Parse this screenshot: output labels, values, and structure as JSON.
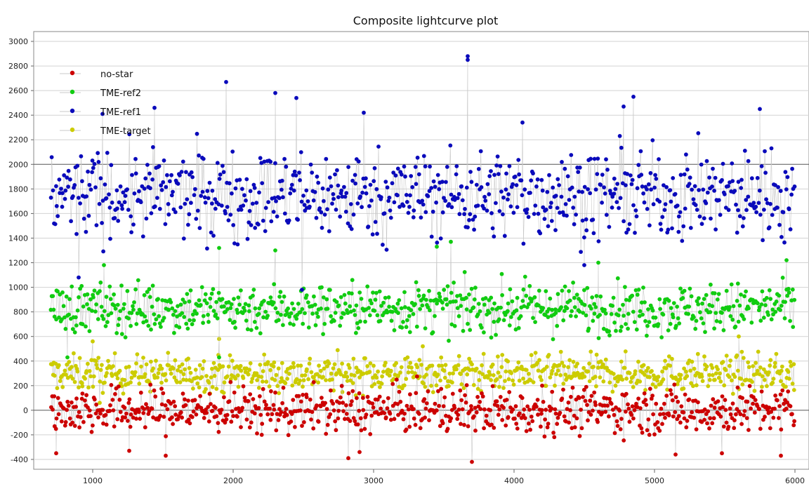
{
  "chart_data": {
    "type": "scatter",
    "title": "Composite lightcurve plot",
    "xlabel": "",
    "ylabel": "",
    "xlim": [
      580,
      6100
    ],
    "ylim": [
      -480,
      3080
    ],
    "x_ticks": [
      1000,
      2000,
      3000,
      4000,
      5000,
      6000
    ],
    "y_ticks": [
      -400,
      -200,
      0,
      200,
      400,
      600,
      800,
      1000,
      1200,
      1400,
      1600,
      1800,
      2000,
      2200,
      2400,
      2600,
      2800,
      3000
    ],
    "x_range": [
      700,
      6000
    ],
    "grid": "horizontal",
    "legend_position": "top-left",
    "connector_color": "#c8c8c8",
    "series": [
      {
        "name": "no-star",
        "color": "#cc0000",
        "level": 0,
        "spread": 110,
        "notable_points": [
          {
            "x": 740,
            "y": -350
          },
          {
            "x": 1520,
            "y": -370
          },
          {
            "x": 1260,
            "y": -330
          },
          {
            "x": 2820,
            "y": -390
          },
          {
            "x": 2900,
            "y": -340
          },
          {
            "x": 3700,
            "y": -420
          },
          {
            "x": 4200,
            "y": 200
          },
          {
            "x": 5150,
            "y": -360
          },
          {
            "x": 5480,
            "y": -350
          },
          {
            "x": 5900,
            "y": -370
          }
        ]
      },
      {
        "name": "TME-ref2",
        "color": "#11cc11",
        "level": 830,
        "spread": 120,
        "notable_points": [
          {
            "x": 1080,
            "y": 1180
          },
          {
            "x": 1900,
            "y": 1320
          },
          {
            "x": 2300,
            "y": 1300
          },
          {
            "x": 3550,
            "y": 1370
          },
          {
            "x": 3450,
            "y": 1330
          },
          {
            "x": 5940,
            "y": 1220
          },
          {
            "x": 4600,
            "y": 1200
          },
          {
            "x": 820,
            "y": 430
          },
          {
            "x": 1900,
            "y": 430
          }
        ]
      },
      {
        "name": "TME-ref1",
        "color": "#0a0abb",
        "level": 1750,
        "spread": 210,
        "notable_points": [
          {
            "x": 3670,
            "y": 2880
          },
          {
            "x": 3670,
            "y": 2850
          },
          {
            "x": 1950,
            "y": 2670
          },
          {
            "x": 2300,
            "y": 2580
          },
          {
            "x": 2450,
            "y": 2540
          },
          {
            "x": 4850,
            "y": 2550
          },
          {
            "x": 4780,
            "y": 2470
          },
          {
            "x": 1440,
            "y": 2460
          },
          {
            "x": 5750,
            "y": 2450
          },
          {
            "x": 1070,
            "y": 2410
          },
          {
            "x": 2930,
            "y": 2420
          },
          {
            "x": 4060,
            "y": 2340
          },
          {
            "x": 900,
            "y": 1080
          },
          {
            "x": 2490,
            "y": 980
          },
          {
            "x": 4500,
            "y": 1180
          }
        ]
      },
      {
        "name": "TME-target",
        "color": "#cccc00",
        "level": 300,
        "spread": 85,
        "notable_points": [
          {
            "x": 1000,
            "y": 560
          },
          {
            "x": 1900,
            "y": 580
          },
          {
            "x": 3350,
            "y": 520
          },
          {
            "x": 5600,
            "y": 600
          },
          {
            "x": 1050,
            "y": 60
          }
        ]
      }
    ]
  }
}
